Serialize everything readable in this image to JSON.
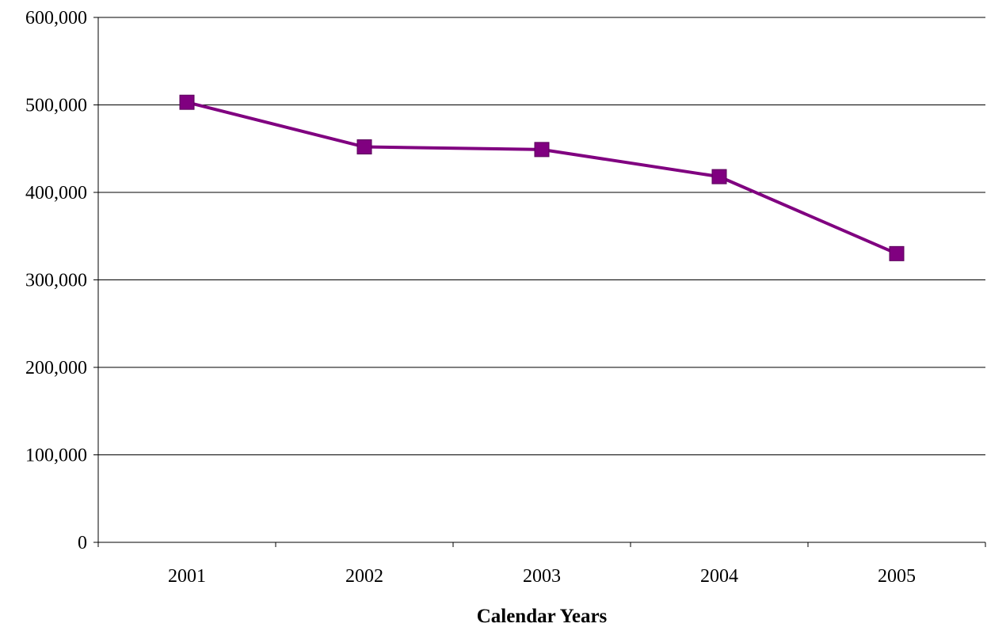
{
  "chart_data": {
    "type": "line",
    "title": "",
    "xlabel": "Calendar Years",
    "ylabel": "",
    "categories": [
      "2001",
      "2002",
      "2003",
      "2004",
      "2005"
    ],
    "series": [
      {
        "values": [
          503000,
          452000,
          449000,
          418000,
          330000
        ]
      }
    ],
    "ylim": [
      0,
      600000
    ],
    "yticks": [
      0,
      100000,
      200000,
      300000,
      400000,
      500000,
      600000
    ],
    "ytick_labels": [
      "0",
      "100,000",
      "200,000",
      "300,000",
      "400,000",
      "500,000",
      "600,000"
    ],
    "grid": {
      "horizontal": true,
      "vertical": false
    },
    "legend": "none",
    "marker": "square",
    "colors": {
      "series": "#800080",
      "grid": "#000000",
      "axis": "#000000"
    }
  }
}
